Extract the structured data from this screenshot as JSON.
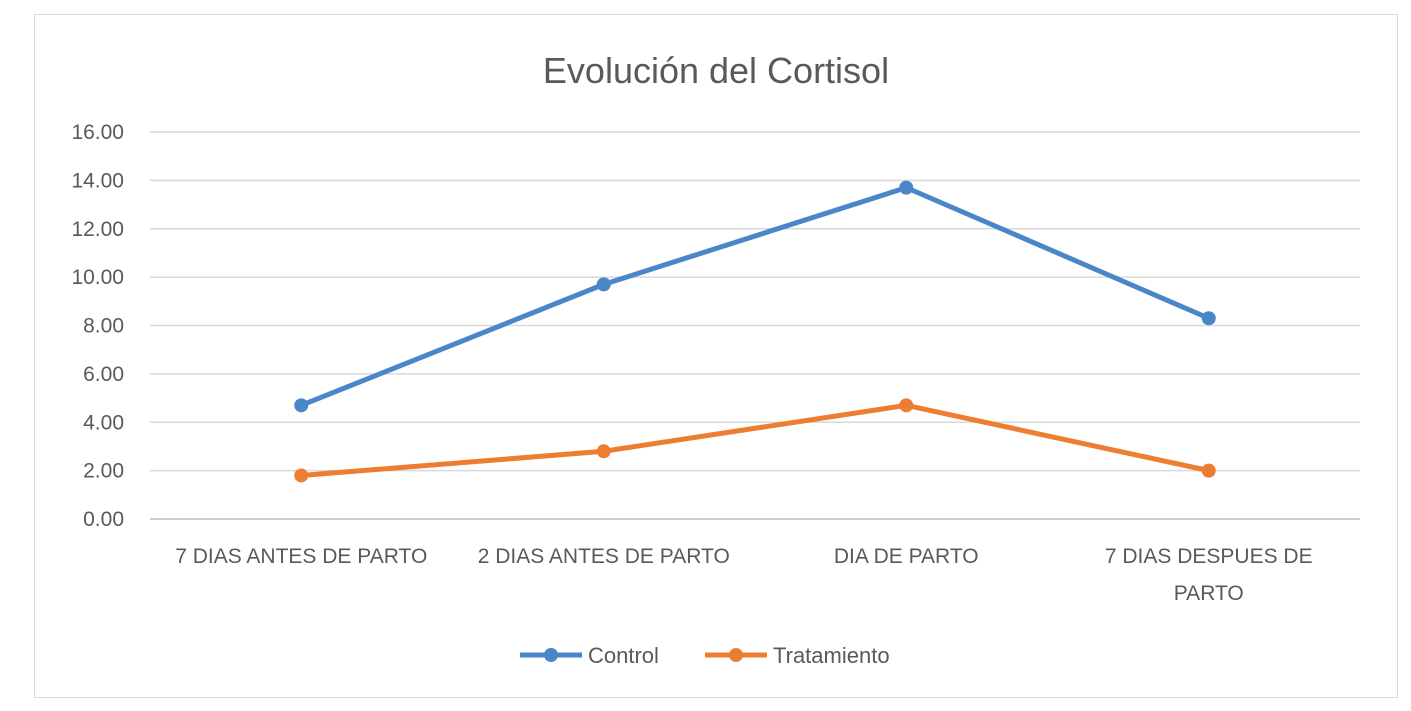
{
  "chart_data": {
    "type": "line",
    "title": "Evolución del Cortisol",
    "xlabel": "",
    "ylabel": "",
    "categories": [
      [
        "7 DIAS ANTES DE PARTO"
      ],
      [
        "2 DIAS ANTES DE PARTO"
      ],
      [
        "DIA DE PARTO"
      ],
      [
        "7 DIAS DESPUES DE",
        "PARTO"
      ]
    ],
    "ylim": [
      0,
      16
    ],
    "y_ticks": [
      "0.00",
      "2.00",
      "4.00",
      "6.00",
      "8.00",
      "10.00",
      "12.00",
      "14.00",
      "16.00"
    ],
    "grid": true,
    "legend_position": "bottom",
    "series": [
      {
        "name": "Control",
        "color": "#4a86c8",
        "values": [
          4.7,
          9.7,
          13.7,
          8.3
        ]
      },
      {
        "name": "Tratamiento",
        "color": "#ed7d31",
        "values": [
          1.8,
          2.8,
          4.7,
          2.0
        ]
      }
    ]
  }
}
